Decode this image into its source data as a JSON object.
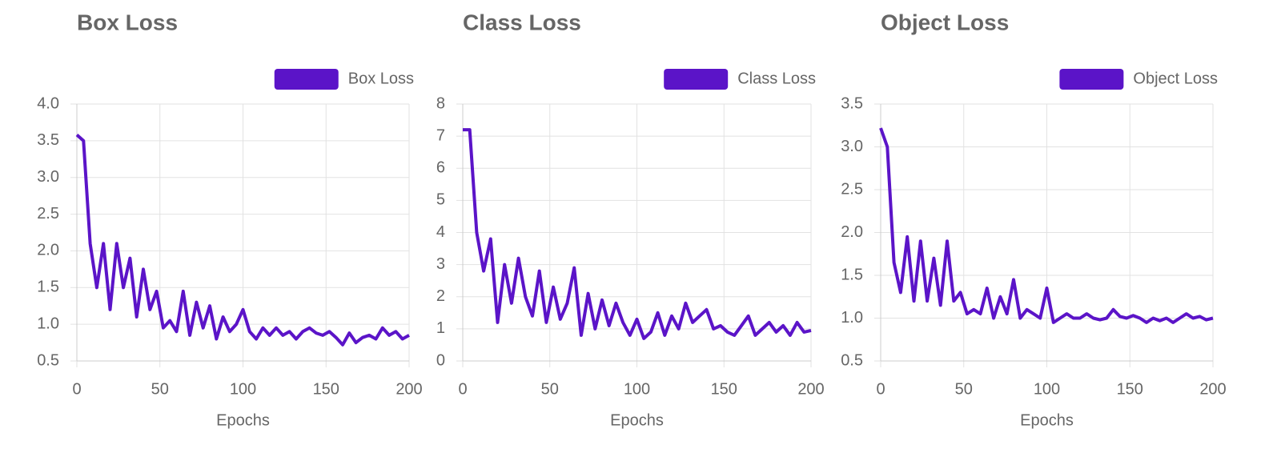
{
  "chart_data": [
    {
      "type": "line",
      "title": "Box Loss",
      "xlabel": "Epochs",
      "x": [
        0,
        4,
        8,
        12,
        16,
        20,
        24,
        28,
        32,
        36,
        40,
        44,
        48,
        52,
        56,
        60,
        64,
        68,
        72,
        76,
        80,
        84,
        88,
        92,
        96,
        100,
        104,
        108,
        112,
        116,
        120,
        124,
        128,
        132,
        136,
        140,
        144,
        148,
        152,
        156,
        160,
        164,
        168,
        172,
        176,
        180,
        184,
        188,
        192,
        196,
        200
      ],
      "series": [
        {
          "name": "Box Loss",
          "color": "#5b14c8",
          "values": [
            3.58,
            3.5,
            2.1,
            1.5,
            2.1,
            1.2,
            2.1,
            1.5,
            1.9,
            1.1,
            1.75,
            1.2,
            1.45,
            0.95,
            1.05,
            0.9,
            1.45,
            0.85,
            1.3,
            0.95,
            1.25,
            0.8,
            1.1,
            0.9,
            1.0,
            1.2,
            0.9,
            0.8,
            0.95,
            0.85,
            0.95,
            0.85,
            0.9,
            0.8,
            0.9,
            0.95,
            0.88,
            0.85,
            0.9,
            0.82,
            0.72,
            0.88,
            0.75,
            0.82,
            0.85,
            0.8,
            0.95,
            0.85,
            0.9,
            0.8,
            0.85
          ]
        }
      ],
      "xlim": [
        0,
        200
      ],
      "xticks": [
        0,
        50,
        100,
        150,
        200
      ],
      "ylim": [
        0.5,
        4
      ],
      "yticks": [
        {
          "value": 4,
          "label": "4.0"
        },
        3.5,
        {
          "value": 3,
          "label": "3.0"
        },
        2.5,
        {
          "value": 2,
          "label": "2.0"
        },
        1.5,
        {
          "value": 1,
          "label": "1.0"
        },
        0.5
      ],
      "grid": true,
      "legend": "top-right"
    },
    {
      "type": "line",
      "title": "Class Loss",
      "xlabel": "Epochs",
      "x": [
        0,
        4,
        8,
        12,
        16,
        20,
        24,
        28,
        32,
        36,
        40,
        44,
        48,
        52,
        56,
        60,
        64,
        68,
        72,
        76,
        80,
        84,
        88,
        92,
        96,
        100,
        104,
        108,
        112,
        116,
        120,
        124,
        128,
        132,
        136,
        140,
        144,
        148,
        152,
        156,
        160,
        164,
        168,
        172,
        176,
        180,
        184,
        188,
        192,
        196,
        200
      ],
      "series": [
        {
          "name": "Class Loss",
          "color": "#5b14c8",
          "values": [
            7.2,
            7.2,
            4.0,
            2.8,
            3.8,
            1.2,
            3.0,
            1.8,
            3.2,
            2.0,
            1.4,
            2.8,
            1.2,
            2.3,
            1.3,
            1.8,
            2.9,
            0.8,
            2.1,
            1.0,
            1.9,
            1.1,
            1.8,
            1.2,
            0.8,
            1.3,
            0.7,
            0.9,
            1.5,
            0.8,
            1.4,
            1.0,
            1.8,
            1.2,
            1.4,
            1.6,
            1.0,
            1.1,
            0.9,
            0.8,
            1.1,
            1.4,
            0.8,
            1.0,
            1.2,
            0.9,
            1.1,
            0.8,
            1.2,
            0.9,
            0.95
          ]
        }
      ],
      "xlim": [
        0,
        200
      ],
      "xticks": [
        0,
        50,
        100,
        150,
        200
      ],
      "ylim": [
        0,
        8
      ],
      "yticks": [
        8,
        7,
        6,
        5,
        4,
        3,
        2,
        1,
        0
      ],
      "grid": true,
      "legend": "top-right"
    },
    {
      "type": "line",
      "title": "Object Loss",
      "xlabel": "Epochs",
      "x": [
        0,
        4,
        8,
        12,
        16,
        20,
        24,
        28,
        32,
        36,
        40,
        44,
        48,
        52,
        56,
        60,
        64,
        68,
        72,
        76,
        80,
        84,
        88,
        92,
        96,
        100,
        104,
        108,
        112,
        116,
        120,
        124,
        128,
        132,
        136,
        140,
        144,
        148,
        152,
        156,
        160,
        164,
        168,
        172,
        176,
        180,
        184,
        188,
        192,
        196,
        200
      ],
      "series": [
        {
          "name": "Object Loss",
          "color": "#5b14c8",
          "values": [
            3.22,
            3.0,
            1.65,
            1.3,
            1.95,
            1.2,
            1.9,
            1.2,
            1.7,
            1.15,
            1.9,
            1.2,
            1.3,
            1.05,
            1.1,
            1.05,
            1.35,
            1.0,
            1.25,
            1.05,
            1.45,
            1.0,
            1.1,
            1.05,
            1.0,
            1.35,
            0.95,
            1.0,
            1.05,
            1.0,
            1.0,
            1.05,
            1.0,
            0.98,
            1.0,
            1.1,
            1.02,
            1.0,
            1.03,
            1.0,
            0.95,
            1.0,
            0.97,
            1.0,
            0.95,
            1.0,
            1.05,
            1.0,
            1.02,
            0.98,
            1.0
          ]
        }
      ],
      "xlim": [
        0,
        200
      ],
      "xticks": [
        0,
        50,
        100,
        150,
        200
      ],
      "ylim": [
        0.5,
        3.5
      ],
      "yticks": [
        3.5,
        {
          "value": 3,
          "label": "3.0"
        },
        2.5,
        {
          "value": 2,
          "label": "2.0"
        },
        1.5,
        {
          "value": 1,
          "label": "1.0"
        },
        0.5
      ],
      "grid": true,
      "legend": "top-right"
    }
  ]
}
